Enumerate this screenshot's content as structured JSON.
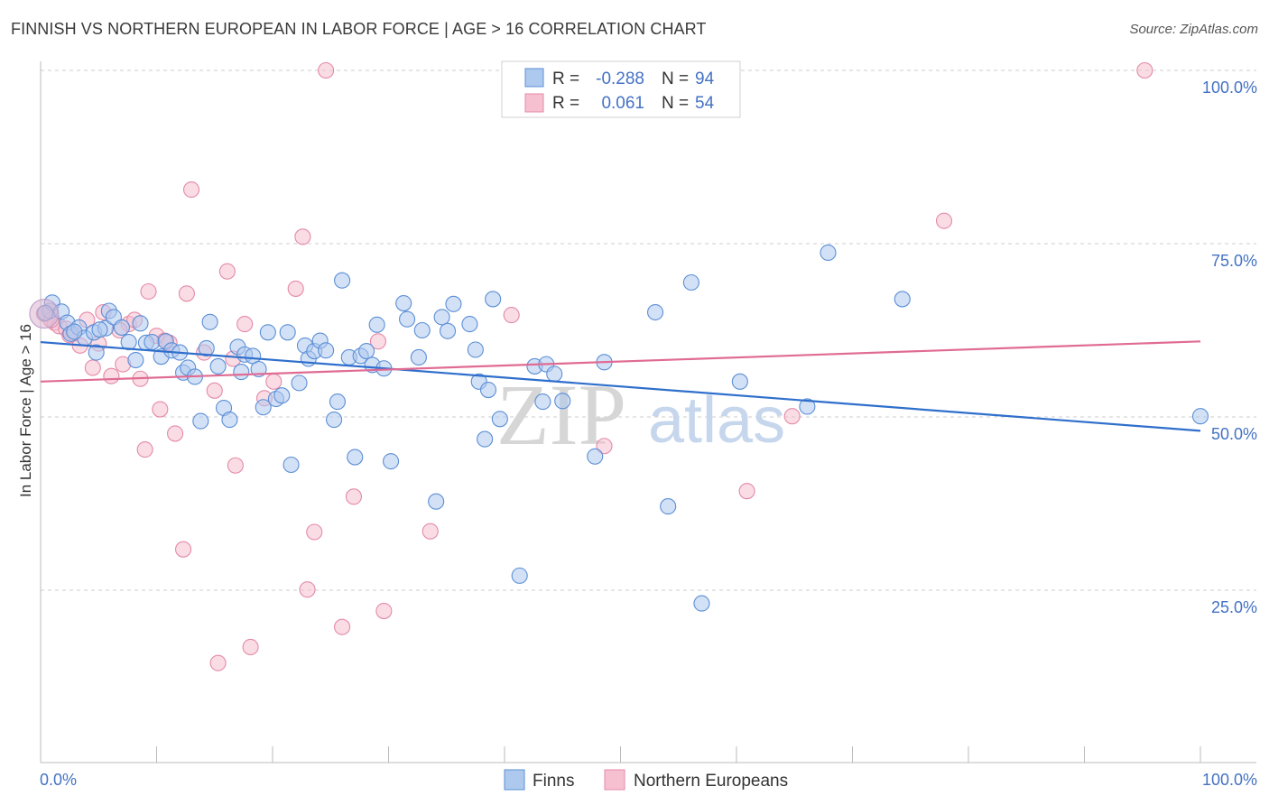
{
  "title": "FINNISH VS NORTHERN EUROPEAN IN LABOR FORCE | AGE > 16 CORRELATION CHART",
  "source": "Source: ZipAtlas.com",
  "watermark": {
    "zip": "ZIP",
    "atlas": "atlas"
  },
  "colors": {
    "finns_fill": "#aec9ee",
    "finns_stroke": "#5b8fd6",
    "finns_line": "#2f6fcc",
    "ne_fill": "#f6c0d0",
    "ne_stroke": "#e48aa8",
    "ne_line": "#e06b93",
    "grid": "#cccccc",
    "axis_label": "#4472c4"
  },
  "legend": {
    "rows": [
      {
        "r_label": "R =",
        "r_value": "-0.288",
        "n_label": "N =",
        "n_value": "94",
        "series": "finns"
      },
      {
        "r_label": "R =",
        "r_value": "0.061",
        "n_label": "N =",
        "n_value": "54",
        "series": "ne"
      }
    ]
  },
  "bottom_legend": [
    {
      "label": "Finns",
      "series": "finns"
    },
    {
      "label": "Northern Europeans",
      "series": "ne"
    }
  ],
  "chart_data": {
    "type": "scatter",
    "title": "FINNISH VS NORTHERN EUROPEAN IN LABOR FORCE | AGE > 16 CORRELATION CHART",
    "xlabel": "",
    "ylabel": "In Labor Force | Age > 16",
    "xlim": [
      0,
      100
    ],
    "ylim": [
      0,
      102
    ],
    "x_tick_labels": [
      "0.0%",
      "100.0%"
    ],
    "y_tick_labels": [
      "25.0%",
      "50.0%",
      "75.0%",
      "100.0%"
    ],
    "y_ticks": [
      25,
      50,
      75,
      100
    ],
    "grid": "horizontal dashed",
    "legend_position": "top-center",
    "series": [
      {
        "name": "Finns",
        "r": -0.288,
        "n": 94,
        "trend": {
          "x": [
            0,
            100
          ],
          "y": [
            60.8,
            48.0
          ]
        },
        "points": [
          [
            0.8,
            65.3
          ],
          [
            1.0,
            66.5
          ],
          [
            1.8,
            65.2
          ],
          [
            2.3,
            63.6
          ],
          [
            2.6,
            62.0
          ],
          [
            3.3,
            62.9
          ],
          [
            3.8,
            61.4
          ],
          [
            4.6,
            62.2
          ],
          [
            4.8,
            59.3
          ],
          [
            5.6,
            62.8
          ],
          [
            5.9,
            65.3
          ],
          [
            6.3,
            64.4
          ],
          [
            7.0,
            62.9
          ],
          [
            7.6,
            60.8
          ],
          [
            8.2,
            58.2
          ],
          [
            8.6,
            63.5
          ],
          [
            9.1,
            60.7
          ],
          [
            9.6,
            60.8
          ],
          [
            10.4,
            58.7
          ],
          [
            10.8,
            60.9
          ],
          [
            11.3,
            59.6
          ],
          [
            12.0,
            59.3
          ],
          [
            12.3,
            56.4
          ],
          [
            12.7,
            57.1
          ],
          [
            13.3,
            55.8
          ],
          [
            13.8,
            49.4
          ],
          [
            14.3,
            59.9
          ],
          [
            14.6,
            63.7
          ],
          [
            15.3,
            57.3
          ],
          [
            15.8,
            51.3
          ],
          [
            16.3,
            49.6
          ],
          [
            17.0,
            60.1
          ],
          [
            17.3,
            56.5
          ],
          [
            17.6,
            59.0
          ],
          [
            18.3,
            58.8
          ],
          [
            18.8,
            56.9
          ],
          [
            19.2,
            51.4
          ],
          [
            19.6,
            62.2
          ],
          [
            20.3,
            52.6
          ],
          [
            20.8,
            53.1
          ],
          [
            21.3,
            62.2
          ],
          [
            21.6,
            43.1
          ],
          [
            22.3,
            54.9
          ],
          [
            22.8,
            60.3
          ],
          [
            23.1,
            58.4
          ],
          [
            23.6,
            59.5
          ],
          [
            24.1,
            61.0
          ],
          [
            24.6,
            59.6
          ],
          [
            25.3,
            49.6
          ],
          [
            25.6,
            52.2
          ],
          [
            26.0,
            69.7
          ],
          [
            26.6,
            58.6
          ],
          [
            27.1,
            44.2
          ],
          [
            27.6,
            58.8
          ],
          [
            28.1,
            59.5
          ],
          [
            28.6,
            57.5
          ],
          [
            29.0,
            63.3
          ],
          [
            29.6,
            57.0
          ],
          [
            30.2,
            43.6
          ],
          [
            31.3,
            66.4
          ],
          [
            31.6,
            64.1
          ],
          [
            32.6,
            58.6
          ],
          [
            32.9,
            62.5
          ],
          [
            34.1,
            37.8
          ],
          [
            34.6,
            64.4
          ],
          [
            35.1,
            62.4
          ],
          [
            35.6,
            66.3
          ],
          [
            37.0,
            63.4
          ],
          [
            37.5,
            59.7
          ],
          [
            37.8,
            55.1
          ],
          [
            38.3,
            46.8
          ],
          [
            38.6,
            53.9
          ],
          [
            39.0,
            67.0
          ],
          [
            39.6,
            49.7
          ],
          [
            41.3,
            27.1
          ],
          [
            42.6,
            57.3
          ],
          [
            43.3,
            52.2
          ],
          [
            43.6,
            57.6
          ],
          [
            44.3,
            56.2
          ],
          [
            45.0,
            52.3
          ],
          [
            47.8,
            44.3
          ],
          [
            48.6,
            57.9
          ],
          [
            53.0,
            65.1
          ],
          [
            54.1,
            37.1
          ],
          [
            56.1,
            69.4
          ],
          [
            57.0,
            23.1
          ],
          [
            60.3,
            55.1
          ],
          [
            66.1,
            51.5
          ],
          [
            67.9,
            73.7
          ],
          [
            74.3,
            67.0
          ],
          [
            100.0,
            50.1
          ],
          [
            0.4,
            65.0
          ],
          [
            2.9,
            62.3
          ],
          [
            5.1,
            62.6
          ]
        ]
      },
      {
        "name": "Northern Europeans",
        "r": 0.061,
        "n": 54,
        "trend": {
          "x": [
            0,
            100
          ],
          "y": [
            55.1,
            60.9
          ]
        },
        "points": [
          [
            0.3,
            64.9
          ],
          [
            1.2,
            63.6
          ],
          [
            1.6,
            63.1
          ],
          [
            2.2,
            62.7
          ],
          [
            2.8,
            62.0
          ],
          [
            3.4,
            60.3
          ],
          [
            4.0,
            64.0
          ],
          [
            4.5,
            57.1
          ],
          [
            5.0,
            60.6
          ],
          [
            5.4,
            65.1
          ],
          [
            6.1,
            55.9
          ],
          [
            7.1,
            57.6
          ],
          [
            7.6,
            63.4
          ],
          [
            8.1,
            64.0
          ],
          [
            8.6,
            55.5
          ],
          [
            9.0,
            45.3
          ],
          [
            9.3,
            68.1
          ],
          [
            10.0,
            61.7
          ],
          [
            10.3,
            51.1
          ],
          [
            11.1,
            60.7
          ],
          [
            11.6,
            47.6
          ],
          [
            12.3,
            30.9
          ],
          [
            12.6,
            67.8
          ],
          [
            13.0,
            82.8
          ],
          [
            14.1,
            59.3
          ],
          [
            15.0,
            53.8
          ],
          [
            15.3,
            14.5
          ],
          [
            16.1,
            71.0
          ],
          [
            16.6,
            58.4
          ],
          [
            16.8,
            43.0
          ],
          [
            17.6,
            63.4
          ],
          [
            18.1,
            16.8
          ],
          [
            19.3,
            52.7
          ],
          [
            20.1,
            55.1
          ],
          [
            22.0,
            68.5
          ],
          [
            22.6,
            76.0
          ],
          [
            23.0,
            25.1
          ],
          [
            23.6,
            33.4
          ],
          [
            24.6,
            100.0
          ],
          [
            26.0,
            19.7
          ],
          [
            27.0,
            38.5
          ],
          [
            29.1,
            60.9
          ],
          [
            29.6,
            22.0
          ],
          [
            33.6,
            33.5
          ],
          [
            40.6,
            64.7
          ],
          [
            48.6,
            45.8
          ],
          [
            60.9,
            39.3
          ],
          [
            64.8,
            50.1
          ],
          [
            77.9,
            78.3
          ],
          [
            95.2,
            100.0
          ],
          [
            0.9,
            64.0
          ],
          [
            2.5,
            61.8
          ],
          [
            6.8,
            62.5
          ],
          [
            10.7,
            61.0
          ]
        ]
      }
    ]
  }
}
